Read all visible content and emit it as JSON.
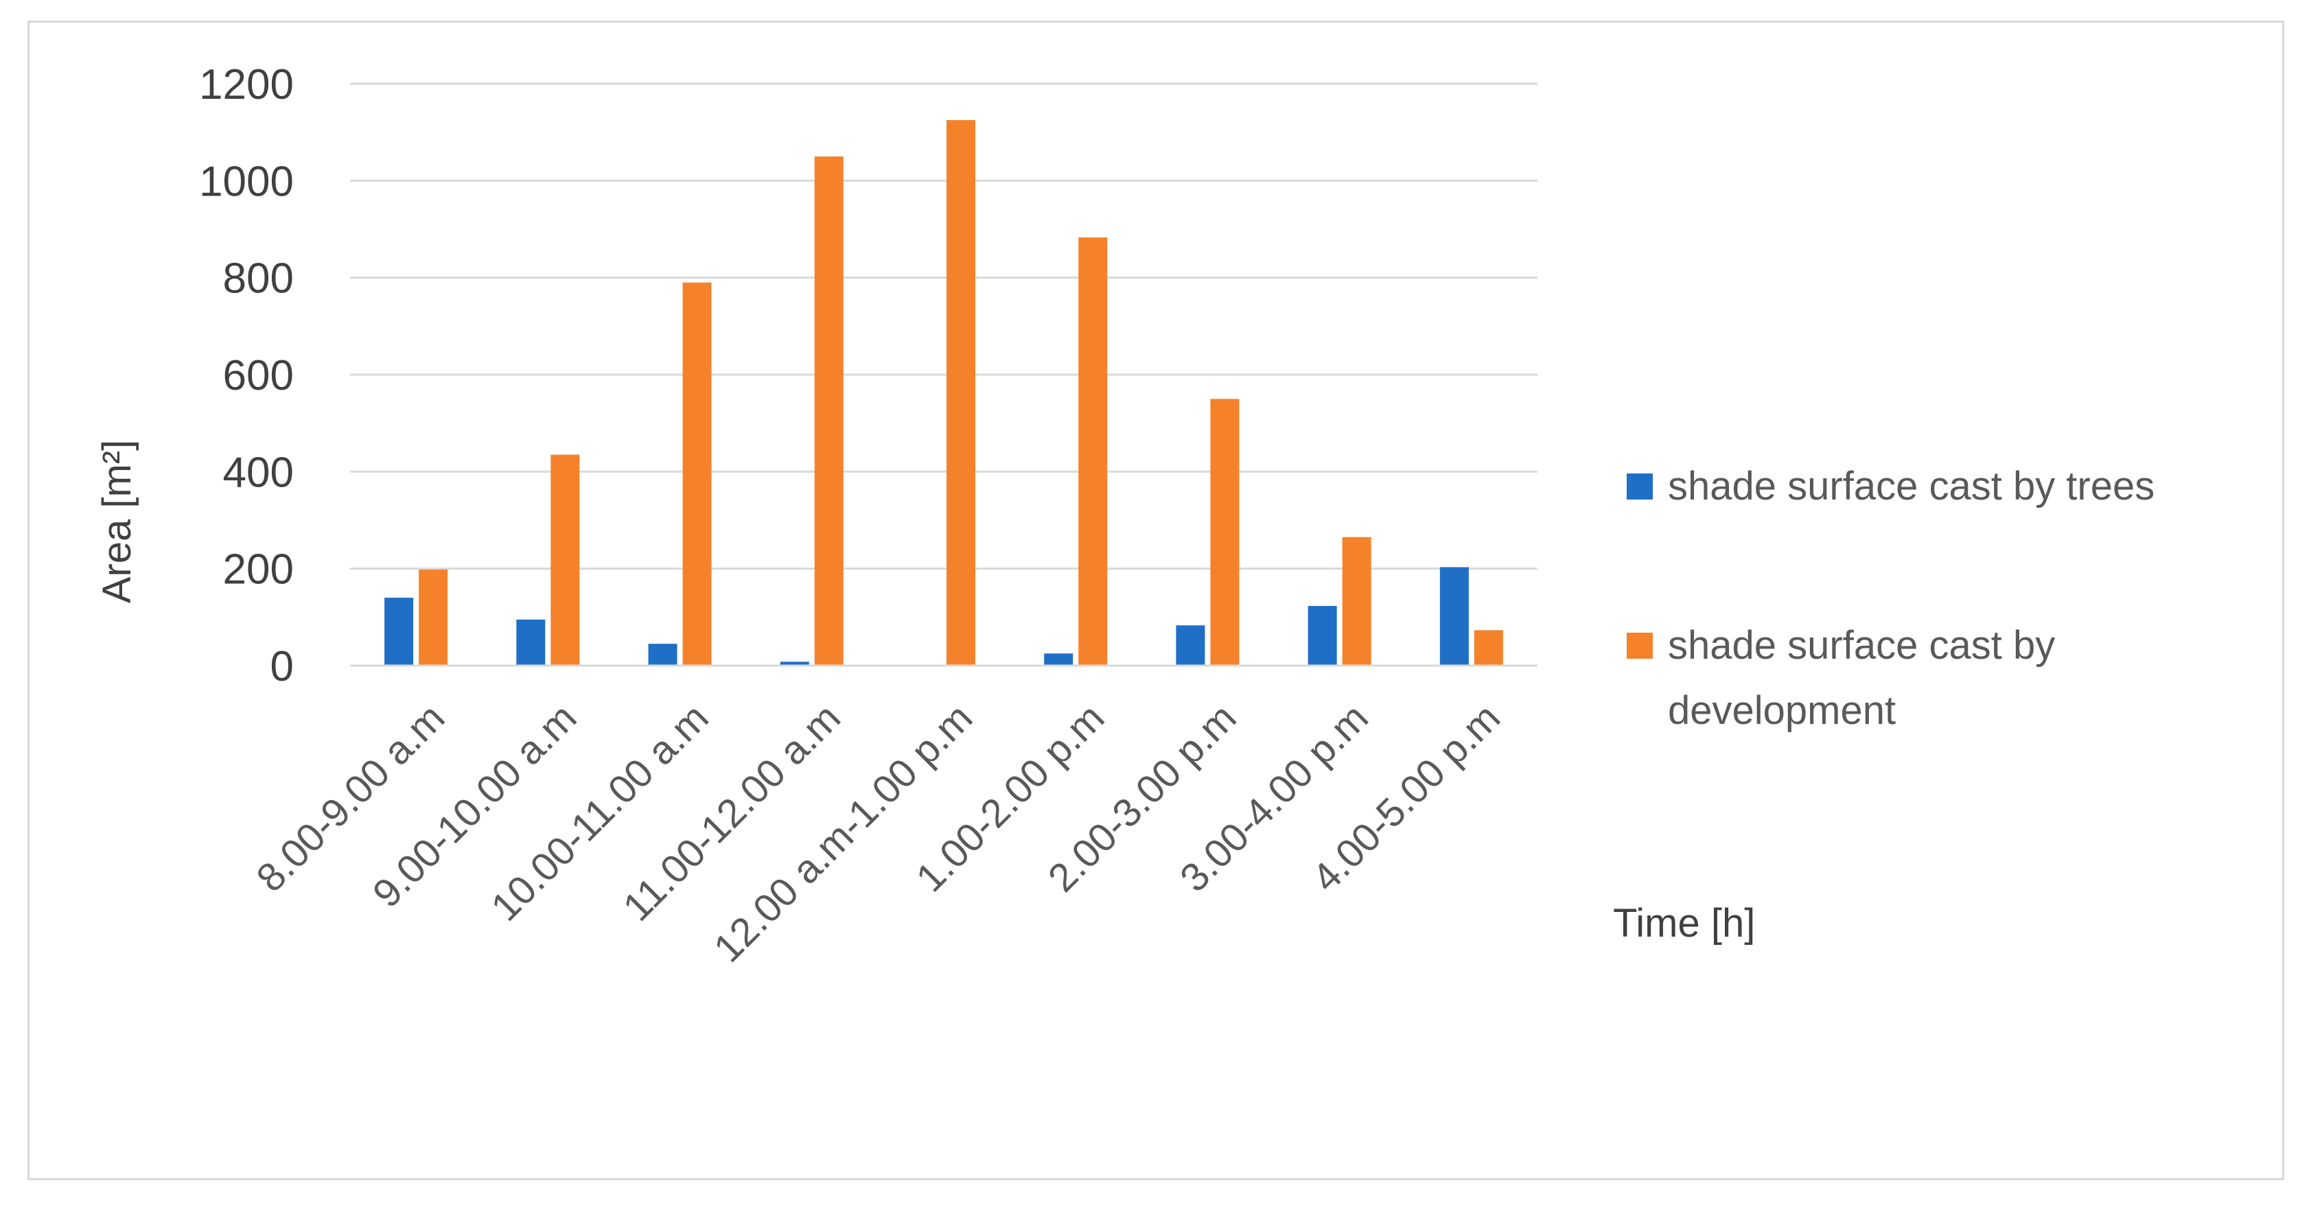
{
  "chart_data": {
    "type": "bar",
    "categories": [
      "8.00-9.00 a.m",
      "9.00-10.00 a.m",
      "10.00-11.00 a.m",
      "11.00-12.00 a.m",
      "12.00 a.m-1.00 p.m",
      "1.00-2.00 p.m",
      "2.00-3.00 p.m",
      "3.00-4.00 p.m",
      "4.00-5.00 p.m"
    ],
    "series": [
      {
        "name": "shade surface cast by trees",
        "color": "#1f6fc6",
        "values": [
          140,
          95,
          45,
          8,
          0,
          25,
          83,
          123,
          203
        ]
      },
      {
        "name": "shade surface cast by development",
        "color": "#f5822a",
        "values": [
          198,
          435,
          790,
          1050,
          1125,
          883,
          550,
          265,
          73
        ]
      }
    ],
    "title": "",
    "xlabel": "Time [h]",
    "ylabel": "Area [m²]",
    "ylim": [
      0,
      1200
    ],
    "yticks": [
      0,
      200,
      400,
      600,
      800,
      1000,
      1200
    ],
    "grid": true,
    "legend_position": "right"
  }
}
